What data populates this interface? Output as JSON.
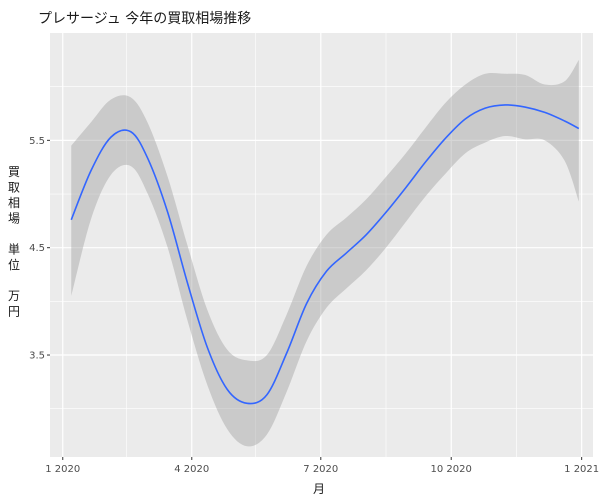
{
  "chart_data": {
    "type": "line",
    "title": "プレサージュ 今年の買取相場推移",
    "xlabel": "月",
    "ylabel_chars": [
      "買",
      "取",
      "相",
      "場",
      "",
      "単",
      "位",
      "",
      "万",
      "円"
    ],
    "x_ticks": [
      "2020-01-01",
      "2020-04-01",
      "2020-07-01",
      "2020-10-01",
      "2021-01-01"
    ],
    "x_tick_labels": [
      "1 2020",
      "4 2020",
      "7 2020",
      "10 2020",
      "1 2021"
    ],
    "y_ticks": [
      3.5,
      4.5,
      5.5
    ],
    "y_tick_labels": [
      "3.5",
      "4.5",
      "5.5"
    ],
    "xlim": [
      "2019-12-23",
      "2021-01-09"
    ],
    "ylim": [
      2.55,
      6.5
    ],
    "grid": true,
    "line_color": "#3366ff",
    "band_color": "#999999",
    "panel_background": "#ebebeb",
    "series": [
      {
        "x": [
          "2020-01-07",
          "2020-01-21",
          "2020-02-04",
          "2020-02-18",
          "2020-03-01",
          "2020-03-15",
          "2020-03-29",
          "2020-04-12",
          "2020-04-26",
          "2020-05-10",
          "2020-05-24",
          "2020-06-07",
          "2020-06-21",
          "2020-07-05",
          "2020-07-19",
          "2020-08-02",
          "2020-08-16",
          "2020-08-30",
          "2020-09-13",
          "2020-09-27",
          "2020-10-11",
          "2020-10-25",
          "2020-11-08",
          "2020-11-22",
          "2020-12-06",
          "2020-12-20",
          "2020-12-30"
        ],
        "y": [
          4.76,
          5.22,
          5.53,
          5.58,
          5.33,
          4.83,
          4.17,
          3.57,
          3.18,
          3.05,
          3.13,
          3.52,
          3.98,
          4.28,
          4.45,
          4.62,
          4.83,
          5.06,
          5.3,
          5.52,
          5.7,
          5.8,
          5.83,
          5.81,
          5.76,
          5.68,
          5.61
        ],
        "upper": [
          5.45,
          5.67,
          5.88,
          5.9,
          5.66,
          5.16,
          4.52,
          3.92,
          3.55,
          3.45,
          3.5,
          3.88,
          4.33,
          4.62,
          4.78,
          4.95,
          5.16,
          5.38,
          5.62,
          5.85,
          6.02,
          6.12,
          6.12,
          6.11,
          6.02,
          6.05,
          6.25
        ],
        "lower": [
          4.05,
          4.77,
          5.18,
          5.26,
          5.0,
          4.5,
          3.82,
          3.22,
          2.81,
          2.65,
          2.76,
          3.16,
          3.63,
          3.94,
          4.12,
          4.29,
          4.5,
          4.74,
          4.98,
          5.19,
          5.38,
          5.48,
          5.54,
          5.51,
          5.5,
          5.31,
          4.93
        ]
      }
    ]
  }
}
